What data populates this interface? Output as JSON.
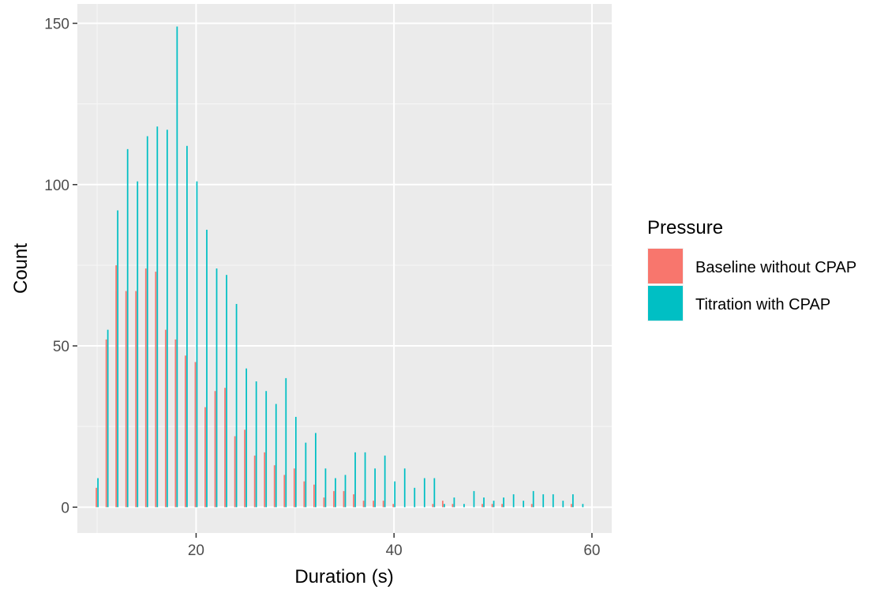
{
  "chart_data": {
    "type": "bar",
    "xlabel": "Duration (s)",
    "ylabel": "Count",
    "xlim": [
      8,
      62
    ],
    "ylim": [
      -8,
      156
    ],
    "x_ticks": [
      20,
      40,
      60
    ],
    "y_ticks": [
      0,
      50,
      100,
      150
    ],
    "grid": true,
    "legend_position": "right",
    "legend_title": "Pressure",
    "x": [
      10,
      11,
      12,
      13,
      14,
      15,
      16,
      17,
      18,
      19,
      20,
      21,
      22,
      23,
      24,
      25,
      26,
      27,
      28,
      29,
      30,
      31,
      32,
      33,
      34,
      35,
      36,
      37,
      38,
      39,
      40,
      41,
      42,
      43,
      44,
      45,
      46,
      47,
      48,
      49,
      50,
      51,
      52,
      53,
      54,
      55,
      56,
      57,
      58,
      59
    ],
    "series": [
      {
        "name": "Baseline without CPAP",
        "color": "#F8766D",
        "values": [
          6,
          52,
          75,
          67,
          67,
          74,
          73,
          55,
          52,
          47,
          45,
          31,
          36,
          37,
          22,
          24,
          16,
          17,
          13,
          10,
          12,
          8,
          7,
          3,
          5,
          5,
          4,
          2,
          2,
          2,
          1,
          0,
          0,
          0,
          1,
          2,
          1,
          0,
          0,
          1,
          1,
          1,
          0,
          0,
          1,
          0,
          0,
          0,
          1,
          0
        ]
      },
      {
        "name": "Titration with CPAP",
        "color": "#00BFC4",
        "values": [
          9,
          55,
          92,
          111,
          101,
          115,
          118,
          117,
          149,
          112,
          101,
          86,
          74,
          72,
          63,
          43,
          39,
          36,
          32,
          40,
          28,
          20,
          23,
          12,
          9,
          10,
          17,
          17,
          12,
          16,
          8,
          12,
          6,
          9,
          9,
          1,
          3,
          1,
          5,
          3,
          2,
          3,
          4,
          2,
          5,
          4,
          4,
          2,
          4,
          1
        ]
      }
    ]
  }
}
